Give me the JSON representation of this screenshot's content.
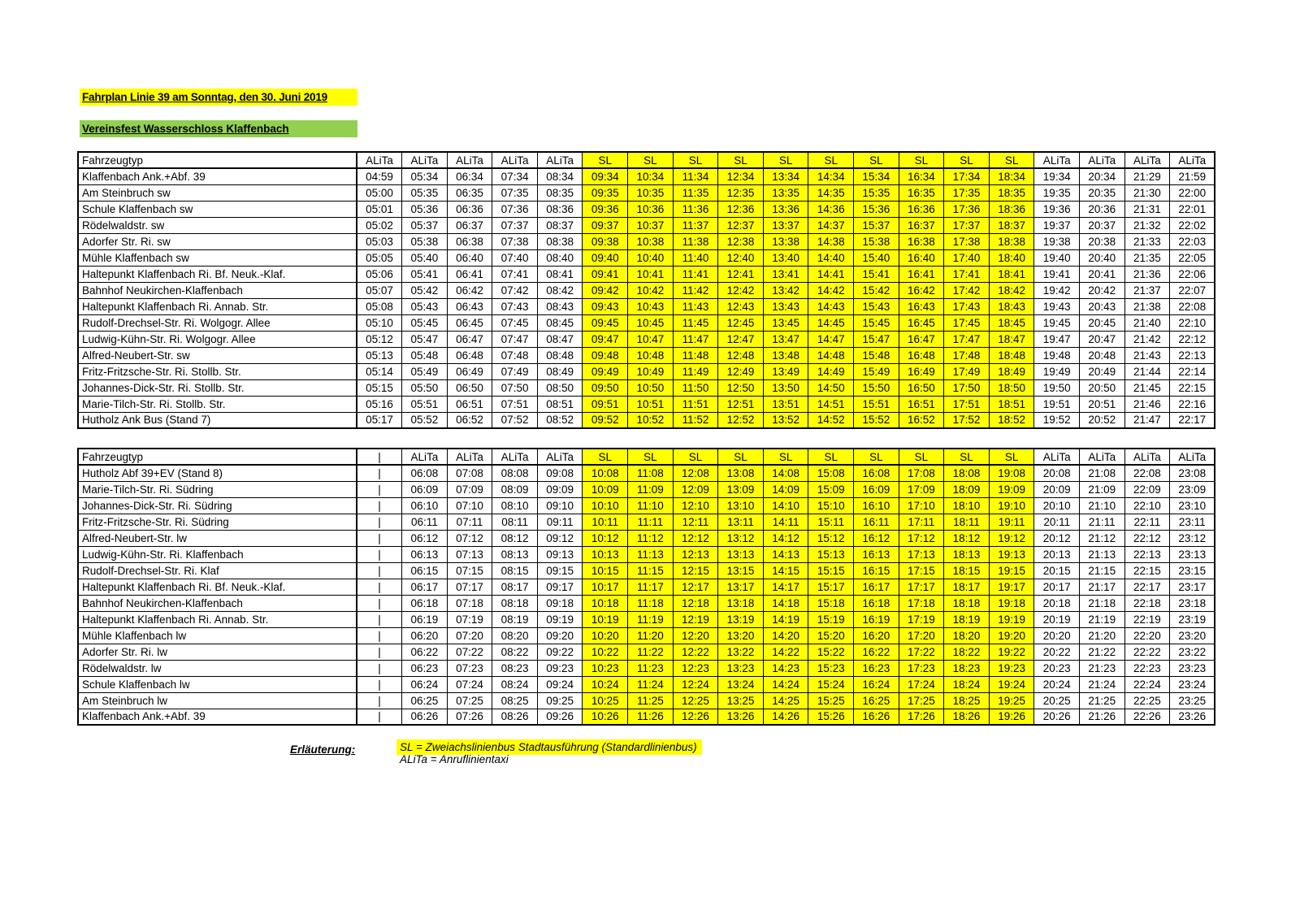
{
  "header": {
    "title": "Fahrplan Linie 39 am Sonntag, den 30. Juni 2019",
    "subtitle": "Vereinsfest Wasserschloss Klaffenbach"
  },
  "colors": {
    "title_highlight": "#FFFF00",
    "subtitle_highlight": "#92D050",
    "sl_highlight": "#FFFF00"
  },
  "legend": {
    "label": "Erläuterung:",
    "sl": "SL = Zweiachslinienbus Stadtausführung (Standardlinienbus)",
    "alita": "ALiTa = Anruflinientaxi"
  },
  "tables": [
    {
      "name": "outbound",
      "corner_label": "Fahrzeugtyp",
      "columns": [
        "ALiTa",
        "ALiTa",
        "ALiTa",
        "ALiTa",
        "ALiTa",
        "SL",
        "SL",
        "SL",
        "SL",
        "SL",
        "SL",
        "SL",
        "SL",
        "SL",
        "SL",
        "ALiTa",
        "ALiTa",
        "ALiTa",
        "ALiTa"
      ],
      "rows": [
        {
          "station": "Klaffenbach Ank.+Abf. 39",
          "times": [
            "04:59",
            "05:34",
            "06:34",
            "07:34",
            "08:34",
            "09:34",
            "10:34",
            "11:34",
            "12:34",
            "13:34",
            "14:34",
            "15:34",
            "16:34",
            "17:34",
            "18:34",
            "19:34",
            "20:34",
            "21:29",
            "21:59"
          ]
        },
        {
          "station": "Am Steinbruch sw",
          "times": [
            "05:00",
            "05:35",
            "06:35",
            "07:35",
            "08:35",
            "09:35",
            "10:35",
            "11:35",
            "12:35",
            "13:35",
            "14:35",
            "15:35",
            "16:35",
            "17:35",
            "18:35",
            "19:35",
            "20:35",
            "21:30",
            "22:00"
          ]
        },
        {
          "station": "Schule Klaffenbach sw",
          "times": [
            "05:01",
            "05:36",
            "06:36",
            "07:36",
            "08:36",
            "09:36",
            "10:36",
            "11:36",
            "12:36",
            "13:36",
            "14:36",
            "15:36",
            "16:36",
            "17:36",
            "18:36",
            "19:36",
            "20:36",
            "21:31",
            "22:01"
          ]
        },
        {
          "station": "Rödelwaldstr. sw",
          "times": [
            "05:02",
            "05:37",
            "06:37",
            "07:37",
            "08:37",
            "09:37",
            "10:37",
            "11:37",
            "12:37",
            "13:37",
            "14:37",
            "15:37",
            "16:37",
            "17:37",
            "18:37",
            "19:37",
            "20:37",
            "21:32",
            "22:02"
          ]
        },
        {
          "station": "Adorfer Str. Ri. sw",
          "times": [
            "05:03",
            "05:38",
            "06:38",
            "07:38",
            "08:38",
            "09:38",
            "10:38",
            "11:38",
            "12:38",
            "13:38",
            "14:38",
            "15:38",
            "16:38",
            "17:38",
            "18:38",
            "19:38",
            "20:38",
            "21:33",
            "22:03"
          ]
        },
        {
          "station": "Mühle Klaffenbach sw",
          "times": [
            "05:05",
            "05:40",
            "06:40",
            "07:40",
            "08:40",
            "09:40",
            "10:40",
            "11:40",
            "12:40",
            "13:40",
            "14:40",
            "15:40",
            "16:40",
            "17:40",
            "18:40",
            "19:40",
            "20:40",
            "21:35",
            "22:05"
          ]
        },
        {
          "station": "Haltepunkt Klaffenbach Ri. Bf. Neuk.-Klaf.",
          "times": [
            "05:06",
            "05:41",
            "06:41",
            "07:41",
            "08:41",
            "09:41",
            "10:41",
            "11:41",
            "12:41",
            "13:41",
            "14:41",
            "15:41",
            "16:41",
            "17:41",
            "18:41",
            "19:41",
            "20:41",
            "21:36",
            "22:06"
          ]
        },
        {
          "station": "Bahnhof Neukirchen-Klaffenbach",
          "times": [
            "05:07",
            "05:42",
            "06:42",
            "07:42",
            "08:42",
            "09:42",
            "10:42",
            "11:42",
            "12:42",
            "13:42",
            "14:42",
            "15:42",
            "16:42",
            "17:42",
            "18:42",
            "19:42",
            "20:42",
            "21:37",
            "22:07"
          ]
        },
        {
          "station": "Haltepunkt Klaffenbach Ri. Annab. Str.",
          "times": [
            "05:08",
            "05:43",
            "06:43",
            "07:43",
            "08:43",
            "09:43",
            "10:43",
            "11:43",
            "12:43",
            "13:43",
            "14:43",
            "15:43",
            "16:43",
            "17:43",
            "18:43",
            "19:43",
            "20:43",
            "21:38",
            "22:08"
          ]
        },
        {
          "station": "Rudolf-Drechsel-Str. Ri. Wolgogr. Allee",
          "times": [
            "05:10",
            "05:45",
            "06:45",
            "07:45",
            "08:45",
            "09:45",
            "10:45",
            "11:45",
            "12:45",
            "13:45",
            "14:45",
            "15:45",
            "16:45",
            "17:45",
            "18:45",
            "19:45",
            "20:45",
            "21:40",
            "22:10"
          ]
        },
        {
          "station": "Ludwig-Kühn-Str. Ri. Wolgogr. Allee",
          "times": [
            "05:12",
            "05:47",
            "06:47",
            "07:47",
            "08:47",
            "09:47",
            "10:47",
            "11:47",
            "12:47",
            "13:47",
            "14:47",
            "15:47",
            "16:47",
            "17:47",
            "18:47",
            "19:47",
            "20:47",
            "21:42",
            "22:12"
          ]
        },
        {
          "station": "Alfred-Neubert-Str. sw",
          "times": [
            "05:13",
            "05:48",
            "06:48",
            "07:48",
            "08:48",
            "09:48",
            "10:48",
            "11:48",
            "12:48",
            "13:48",
            "14:48",
            "15:48",
            "16:48",
            "17:48",
            "18:48",
            "19:48",
            "20:48",
            "21:43",
            "22:13"
          ]
        },
        {
          "station": "Fritz-Fritzsche-Str. Ri. Stollb. Str.",
          "times": [
            "05:14",
            "05:49",
            "06:49",
            "07:49",
            "08:49",
            "09:49",
            "10:49",
            "11:49",
            "12:49",
            "13:49",
            "14:49",
            "15:49",
            "16:49",
            "17:49",
            "18:49",
            "19:49",
            "20:49",
            "21:44",
            "22:14"
          ]
        },
        {
          "station": "Johannes-Dick-Str. Ri. Stollb. Str.",
          "times": [
            "05:15",
            "05:50",
            "06:50",
            "07:50",
            "08:50",
            "09:50",
            "10:50",
            "11:50",
            "12:50",
            "13:50",
            "14:50",
            "15:50",
            "16:50",
            "17:50",
            "18:50",
            "19:50",
            "20:50",
            "21:45",
            "22:15"
          ]
        },
        {
          "station": "Marie-Tilch-Str. Ri. Stollb. Str.",
          "times": [
            "05:16",
            "05:51",
            "06:51",
            "07:51",
            "08:51",
            "09:51",
            "10:51",
            "11:51",
            "12:51",
            "13:51",
            "14:51",
            "15:51",
            "16:51",
            "17:51",
            "18:51",
            "19:51",
            "20:51",
            "21:46",
            "22:16"
          ]
        },
        {
          "station": "Hutholz Ank Bus (Stand 7)",
          "times": [
            "05:17",
            "05:52",
            "06:52",
            "07:52",
            "08:52",
            "09:52",
            "10:52",
            "11:52",
            "12:52",
            "13:52",
            "14:52",
            "15:52",
            "16:52",
            "17:52",
            "18:52",
            "19:52",
            "20:52",
            "21:47",
            "22:17"
          ]
        }
      ]
    },
    {
      "name": "return",
      "corner_label": "Fahrzeugtyp",
      "columns": [
        "|",
        "ALiTa",
        "ALiTa",
        "ALiTa",
        "ALiTa",
        "SL",
        "SL",
        "SL",
        "SL",
        "SL",
        "SL",
        "SL",
        "SL",
        "SL",
        "SL",
        "ALiTa",
        "ALiTa",
        "ALiTa",
        "ALiTa"
      ],
      "rows": [
        {
          "station": "Hutholz Abf 39+EV (Stand 8)",
          "times": [
            "|",
            "06:08",
            "07:08",
            "08:08",
            "09:08",
            "10:08",
            "11:08",
            "12:08",
            "13:08",
            "14:08",
            "15:08",
            "16:08",
            "17:08",
            "18:08",
            "19:08",
            "20:08",
            "21:08",
            "22:08",
            "23:08"
          ]
        },
        {
          "station": "Marie-Tilch-Str. Ri. Südring",
          "times": [
            "|",
            "06:09",
            "07:09",
            "08:09",
            "09:09",
            "10:09",
            "11:09",
            "12:09",
            "13:09",
            "14:09",
            "15:09",
            "16:09",
            "17:09",
            "18:09",
            "19:09",
            "20:09",
            "21:09",
            "22:09",
            "23:09"
          ]
        },
        {
          "station": "Johannes-Dick-Str. Ri. Südring",
          "times": [
            "|",
            "06:10",
            "07:10",
            "08:10",
            "09:10",
            "10:10",
            "11:10",
            "12:10",
            "13:10",
            "14:10",
            "15:10",
            "16:10",
            "17:10",
            "18:10",
            "19:10",
            "20:10",
            "21:10",
            "22:10",
            "23:10"
          ]
        },
        {
          "station": "Fritz-Fritzsche-Str. Ri. Südring",
          "times": [
            "|",
            "06:11",
            "07:11",
            "08:11",
            "09:11",
            "10:11",
            "11:11",
            "12:11",
            "13:11",
            "14:11",
            "15:11",
            "16:11",
            "17:11",
            "18:11",
            "19:11",
            "20:11",
            "21:11",
            "22:11",
            "23:11"
          ]
        },
        {
          "station": "Alfred-Neubert-Str. lw",
          "times": [
            "|",
            "06:12",
            "07:12",
            "08:12",
            "09:12",
            "10:12",
            "11:12",
            "12:12",
            "13:12",
            "14:12",
            "15:12",
            "16:12",
            "17:12",
            "18:12",
            "19:12",
            "20:12",
            "21:12",
            "22:12",
            "23:12"
          ]
        },
        {
          "station": "Ludwig-Kühn-Str. Ri. Klaffenbach",
          "times": [
            "|",
            "06:13",
            "07:13",
            "08:13",
            "09:13",
            "10:13",
            "11:13",
            "12:13",
            "13:13",
            "14:13",
            "15:13",
            "16:13",
            "17:13",
            "18:13",
            "19:13",
            "20:13",
            "21:13",
            "22:13",
            "23:13"
          ]
        },
        {
          "station": "Rudolf-Drechsel-Str. Ri. Klaf",
          "times": [
            "|",
            "06:15",
            "07:15",
            "08:15",
            "09:15",
            "10:15",
            "11:15",
            "12:15",
            "13:15",
            "14:15",
            "15:15",
            "16:15",
            "17:15",
            "18:15",
            "19:15",
            "20:15",
            "21:15",
            "22:15",
            "23:15"
          ]
        },
        {
          "station": "Haltepunkt Klaffenbach Ri. Bf. Neuk.-Klaf.",
          "times": [
            "|",
            "06:17",
            "07:17",
            "08:17",
            "09:17",
            "10:17",
            "11:17",
            "12:17",
            "13:17",
            "14:17",
            "15:17",
            "16:17",
            "17:17",
            "18:17",
            "19:17",
            "20:17",
            "21:17",
            "22:17",
            "23:17"
          ]
        },
        {
          "station": "Bahnhof Neukirchen-Klaffenbach",
          "times": [
            "|",
            "06:18",
            "07:18",
            "08:18",
            "09:18",
            "10:18",
            "11:18",
            "12:18",
            "13:18",
            "14:18",
            "15:18",
            "16:18",
            "17:18",
            "18:18",
            "19:18",
            "20:18",
            "21:18",
            "22:18",
            "23:18"
          ]
        },
        {
          "station": "Haltepunkt Klaffenbach Ri. Annab. Str.",
          "times": [
            "|",
            "06:19",
            "07:19",
            "08:19",
            "09:19",
            "10:19",
            "11:19",
            "12:19",
            "13:19",
            "14:19",
            "15:19",
            "16:19",
            "17:19",
            "18:19",
            "19:19",
            "20:19",
            "21:19",
            "22:19",
            "23:19"
          ]
        },
        {
          "station": "Mühle Klaffenbach lw",
          "times": [
            "|",
            "06:20",
            "07:20",
            "08:20",
            "09:20",
            "10:20",
            "11:20",
            "12:20",
            "13:20",
            "14:20",
            "15:20",
            "16:20",
            "17:20",
            "18:20",
            "19:20",
            "20:20",
            "21:20",
            "22:20",
            "23:20"
          ]
        },
        {
          "station": "Adorfer Str. Ri. lw",
          "times": [
            "|",
            "06:22",
            "07:22",
            "08:22",
            "09:22",
            "10:22",
            "11:22",
            "12:22",
            "13:22",
            "14:22",
            "15:22",
            "16:22",
            "17:22",
            "18:22",
            "19:22",
            "20:22",
            "21:22",
            "22:22",
            "23:22"
          ]
        },
        {
          "station": "Rödelwaldstr. lw",
          "times": [
            "|",
            "06:23",
            "07:23",
            "08:23",
            "09:23",
            "10:23",
            "11:23",
            "12:23",
            "13:23",
            "14:23",
            "15:23",
            "16:23",
            "17:23",
            "18:23",
            "19:23",
            "20:23",
            "21:23",
            "22:23",
            "23:23"
          ]
        },
        {
          "station": "Schule Klaffenbach lw",
          "times": [
            "|",
            "06:24",
            "07:24",
            "08:24",
            "09:24",
            "10:24",
            "11:24",
            "12:24",
            "13:24",
            "14:24",
            "15:24",
            "16:24",
            "17:24",
            "18:24",
            "19:24",
            "20:24",
            "21:24",
            "22:24",
            "23:24"
          ]
        },
        {
          "station": "Am Steinbruch lw",
          "times": [
            "|",
            "06:25",
            "07:25",
            "08:25",
            "09:25",
            "10:25",
            "11:25",
            "12:25",
            "13:25",
            "14:25",
            "15:25",
            "16:25",
            "17:25",
            "18:25",
            "19:25",
            "20:25",
            "21:25",
            "22:25",
            "23:25"
          ]
        },
        {
          "station": "Klaffenbach Ank.+Abf. 39",
          "times": [
            "|",
            "06:26",
            "07:26",
            "08:26",
            "09:26",
            "10:26",
            "11:26",
            "12:26",
            "13:26",
            "14:26",
            "15:26",
            "16:26",
            "17:26",
            "18:26",
            "19:26",
            "20:26",
            "21:26",
            "22:26",
            "23:26"
          ]
        }
      ]
    }
  ]
}
